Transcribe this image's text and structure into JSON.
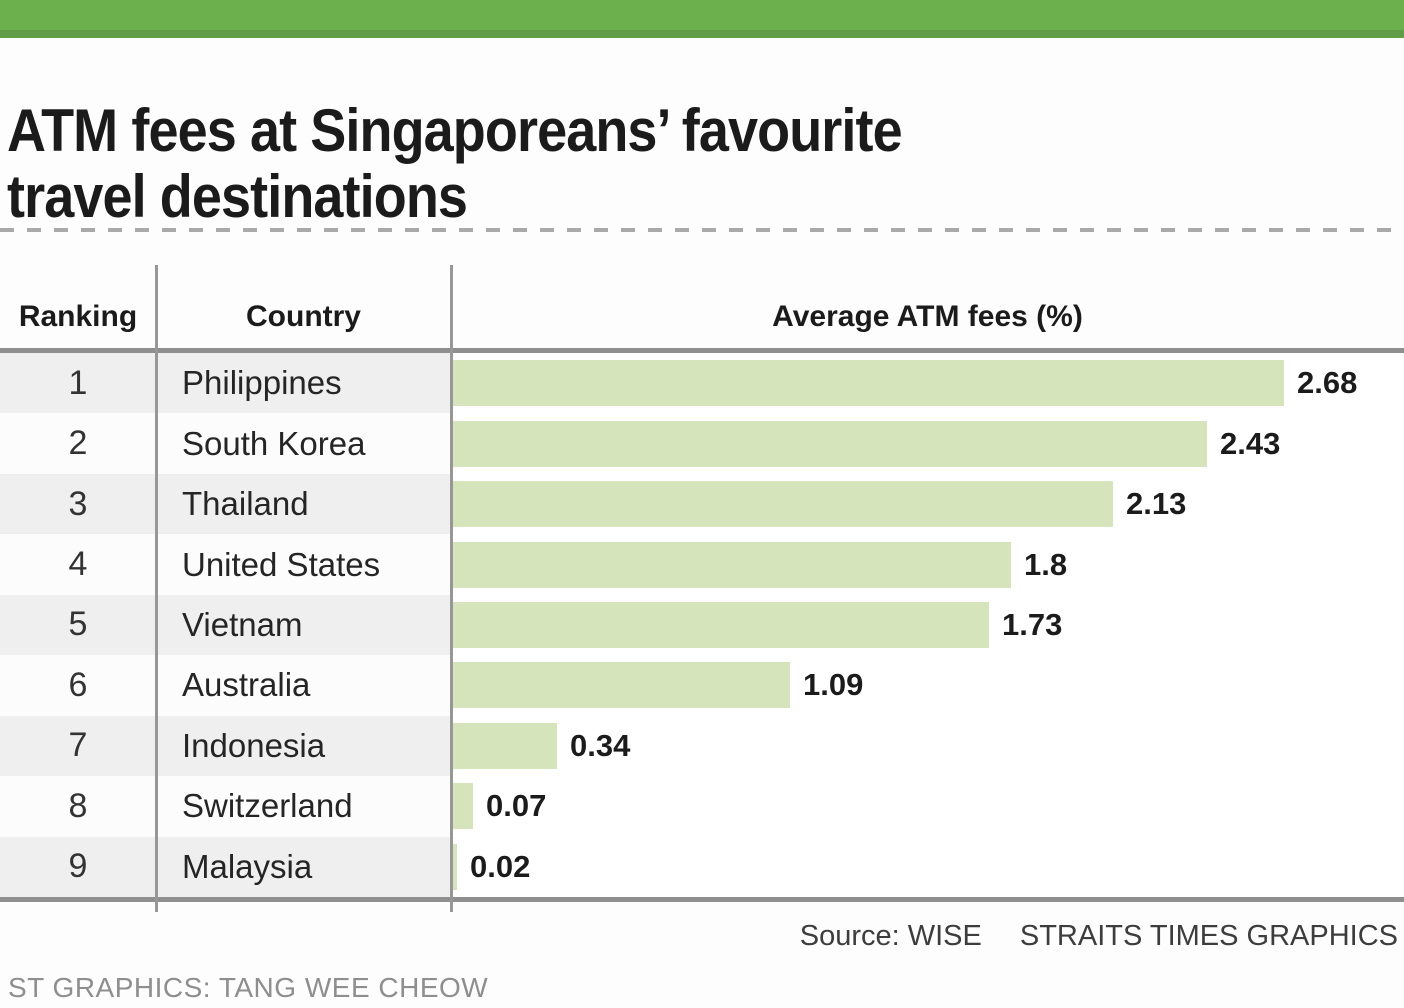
{
  "colors": {
    "accent_green": "#6cb04e",
    "bar_green": "#d6e4bc",
    "stripe_gray": "#efefef",
    "line_gray": "#8f8f8f"
  },
  "title": {
    "line1": "ATM fees at Singaporeans’ favourite",
    "line2": "travel destinations"
  },
  "table": {
    "headers": {
      "ranking": "Ranking",
      "country": "Country",
      "fees": "Average ATM fees (%)"
    }
  },
  "chart_data": {
    "type": "bar",
    "orientation": "horizontal",
    "title": "ATM fees at Singaporeans’ favourite travel destinations",
    "xlabel": "Average ATM fees (%)",
    "xlim": [
      0,
      3.05
    ],
    "grid": false,
    "legend": "none",
    "categories": [
      "Philippines",
      "South Korea",
      "Thailand",
      "United States",
      "Vietnam",
      "Australia",
      "Indonesia",
      "Switzerland",
      "Malaysia"
    ],
    "rankings": [
      1,
      2,
      3,
      4,
      5,
      6,
      7,
      8,
      9
    ],
    "values": [
      2.68,
      2.43,
      2.13,
      1.8,
      1.73,
      1.09,
      0.34,
      0.07,
      0.02
    ],
    "value_labels": [
      "2.68",
      "2.43",
      "2.13",
      "1.8",
      "1.73",
      "1.09",
      "0.34",
      "0.07",
      "0.02"
    ]
  },
  "footer": {
    "source": "Source: WISE",
    "agency": "STRAITS TIMES GRAPHICS",
    "byline": "ST GRAPHICS: TANG WEE CHEOW"
  }
}
